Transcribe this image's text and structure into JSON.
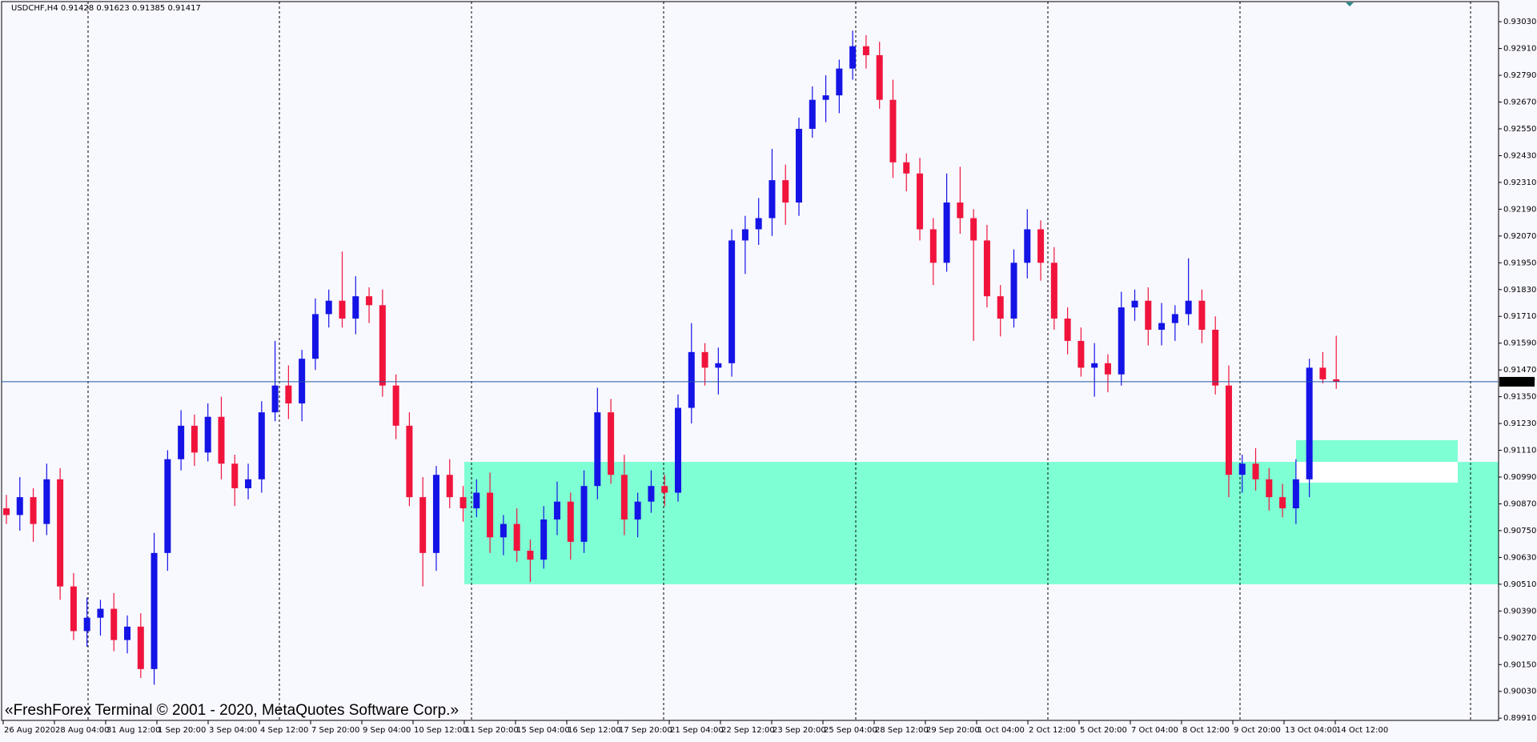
{
  "chart_data": {
    "type": "candlestick",
    "header": "USDCHF,H4  0.91428 0.91623 0.91385 0.91417",
    "watermark": "«FreshForex Terminal © 2001 - 2020, MetaQuotes Software Corp.»",
    "bull_color": "#1414e6",
    "bear_color": "#f0143c",
    "zone_color": "#7fffd4",
    "ylim": [
      0.899,
      0.9312
    ],
    "yticks": [
      {
        "value": 0.9303,
        "label": "0.93030"
      },
      {
        "value": 0.9291,
        "label": "0.92910"
      },
      {
        "value": 0.9279,
        "label": "0.92790"
      },
      {
        "value": 0.9267,
        "label": "0.92670"
      },
      {
        "value": 0.9255,
        "label": "0.92550"
      },
      {
        "value": 0.9243,
        "label": "0.92430"
      },
      {
        "value": 0.9231,
        "label": "0.92310"
      },
      {
        "value": 0.9219,
        "label": "0.92190"
      },
      {
        "value": 0.9207,
        "label": "0.92070"
      },
      {
        "value": 0.9195,
        "label": "0.91950"
      },
      {
        "value": 0.9183,
        "label": "0.91830"
      },
      {
        "value": 0.9171,
        "label": "0.91710"
      },
      {
        "value": 0.9159,
        "label": "0.91590"
      },
      {
        "value": 0.9147,
        "label": "0.91470"
      },
      {
        "value": 0.9135,
        "label": "0.91350"
      },
      {
        "value": 0.9123,
        "label": "0.91230"
      },
      {
        "value": 0.9111,
        "label": "0.91110"
      },
      {
        "value": 0.9099,
        "label": "0.90990"
      },
      {
        "value": 0.9087,
        "label": "0.90870"
      },
      {
        "value": 0.9075,
        "label": "0.90750"
      },
      {
        "value": 0.9063,
        "label": "0.90630"
      },
      {
        "value": 0.9051,
        "label": "0.90510"
      },
      {
        "value": 0.9039,
        "label": "0.90390"
      },
      {
        "value": 0.9027,
        "label": "0.90270"
      },
      {
        "value": 0.9015,
        "label": "0.90150"
      },
      {
        "value": 0.9003,
        "label": "0.90030"
      },
      {
        "value": 0.8991,
        "label": "0.89910"
      }
    ],
    "current_price": {
      "value": 0.91417,
      "label": "0.91417"
    },
    "time_labels": [
      "26 Aug 2020",
      "28 Aug 04:00",
      "31 Aug 12:00",
      "1 Sep 20:00",
      "3 Sep 04:00",
      "4 Sep 12:00",
      "7 Sep 20:00",
      "9 Sep 04:00",
      "10 Sep 12:00",
      "11 Sep 20:00",
      "15 Sep 04:00",
      "16 Sep 12:00",
      "17 Sep 20:00",
      "21 Sep 04:00",
      "22 Sep 12:00",
      "23 Sep 20:00",
      "25 Sep 04:00",
      "28 Sep 12:00",
      "29 Sep 20:00",
      "1 Oct 04:00",
      "2 Oct 12:00",
      "5 Oct 20:00",
      "7 Oct 04:00",
      "8 Oct 12:00",
      "9 Oct 20:00",
      "13 Oct 04:00",
      "14 Oct 12:00"
    ],
    "zones": [
      {
        "top": 0.91058,
        "bottom": 0.9051
      },
      {
        "top": 0.91155,
        "bottom": 0.91058
      }
    ],
    "open": [
      0.9085,
      0.9082,
      0.909,
      0.9078,
      0.9098,
      0.905,
      0.903,
      0.9036,
      0.904,
      0.9026,
      0.9032,
      0.9013,
      0.9065,
      0.9107,
      0.9122,
      0.911,
      0.9126,
      0.9105,
      0.9094,
      0.9098,
      0.9128,
      0.914,
      0.9132,
      0.9152,
      0.9172,
      0.9178,
      0.917,
      0.918,
      0.9176,
      0.914,
      0.9122,
      0.909,
      0.9065,
      0.91,
      0.909,
      0.9085,
      0.9092,
      0.9072,
      0.9078,
      0.9066,
      0.9062,
      0.908,
      0.9088,
      0.907,
      0.9095,
      0.9128,
      0.91,
      0.908,
      0.9088,
      0.9095,
      0.9092,
      0.913,
      0.9155,
      0.9148,
      0.915,
      0.9205,
      0.921,
      0.9215,
      0.9232,
      0.9222,
      0.9255,
      0.9268,
      0.927,
      0.9282,
      0.9292,
      0.9288,
      0.9268,
      0.924,
      0.9235,
      0.921,
      0.9195,
      0.9222,
      0.9215,
      0.9205,
      0.918,
      0.917,
      0.9195,
      0.921,
      0.9195,
      0.917,
      0.916,
      0.9148,
      0.915,
      0.9145,
      0.9175,
      0.9178,
      0.9165,
      0.9168,
      0.9172,
      0.9178,
      0.9165,
      0.914,
      0.91,
      0.9105,
      0.9098,
      0.909,
      0.9085,
      0.9098,
      0.9148,
      0.91428
    ],
    "high": [
      0.9091,
      0.9099,
      0.9094,
      0.9105,
      0.9103,
      0.9056,
      0.9045,
      0.9044,
      0.9047,
      0.9037,
      0.9038,
      0.9074,
      0.9111,
      0.9129,
      0.9127,
      0.9132,
      0.9135,
      0.9109,
      0.9105,
      0.9133,
      0.916,
      0.9149,
      0.9156,
      0.9179,
      0.9183,
      0.92,
      0.9189,
      0.9184,
      0.9183,
      0.9145,
      0.9128,
      0.9099,
      0.9104,
      0.9107,
      0.9095,
      0.9098,
      0.9101,
      0.9082,
      0.9085,
      0.9071,
      0.9086,
      0.9097,
      0.9092,
      0.9102,
      0.9139,
      0.9134,
      0.9109,
      0.9092,
      0.9102,
      0.91,
      0.9136,
      0.9168,
      0.9159,
      0.9157,
      0.921,
      0.9216,
      0.9224,
      0.9246,
      0.9239,
      0.926,
      0.9274,
      0.9279,
      0.9286,
      0.9299,
      0.9297,
      0.9294,
      0.9277,
      0.9244,
      0.9242,
      0.9215,
      0.9235,
      0.9238,
      0.9219,
      0.9212,
      0.9185,
      0.9201,
      0.9219,
      0.9214,
      0.9202,
      0.9175,
      0.9166,
      0.9159,
      0.9154,
      0.9182,
      0.9183,
      0.9184,
      0.9177,
      0.9176,
      0.9197,
      0.9183,
      0.9171,
      0.9149,
      0.9109,
      0.9112,
      0.9103,
      0.9096,
      0.9107,
      0.9152,
      0.9155,
      0.91623
    ],
    "low": [
      0.9078,
      0.9075,
      0.907,
      0.9073,
      0.9044,
      0.9026,
      0.9023,
      0.9028,
      0.9021,
      0.902,
      0.9009,
      0.9006,
      0.9057,
      0.9102,
      0.9104,
      0.9106,
      0.9098,
      0.9086,
      0.9089,
      0.9092,
      0.9124,
      0.9125,
      0.9124,
      0.9147,
      0.9166,
      0.9166,
      0.9163,
      0.9168,
      0.9135,
      0.9116,
      0.9086,
      0.905,
      0.9057,
      0.9085,
      0.9079,
      0.9081,
      0.9065,
      0.9064,
      0.9061,
      0.9052,
      0.9058,
      0.9073,
      0.9062,
      0.9065,
      0.9089,
      0.9096,
      0.9073,
      0.9072,
      0.9083,
      0.9086,
      0.9088,
      0.9123,
      0.914,
      0.9136,
      0.9144,
      0.919,
      0.9203,
      0.9207,
      0.9212,
      0.9216,
      0.9251,
      0.9258,
      0.9262,
      0.9277,
      0.9282,
      0.9264,
      0.9233,
      0.9227,
      0.9205,
      0.9185,
      0.9191,
      0.9208,
      0.916,
      0.9175,
      0.9162,
      0.9166,
      0.9188,
      0.9187,
      0.9165,
      0.9154,
      0.9144,
      0.9135,
      0.9137,
      0.914,
      0.9169,
      0.9158,
      0.9158,
      0.916,
      0.9167,
      0.9159,
      0.9136,
      0.909,
      0.9092,
      0.9093,
      0.9084,
      0.9081,
      0.9078,
      0.909,
      0.9141,
      0.91385
    ],
    "close": [
      0.9082,
      0.909,
      0.9078,
      0.9098,
      0.905,
      0.903,
      0.9036,
      0.904,
      0.9026,
      0.9032,
      0.9013,
      0.9065,
      0.9107,
      0.9122,
      0.911,
      0.9126,
      0.9105,
      0.9094,
      0.9098,
      0.9128,
      0.914,
      0.9132,
      0.9152,
      0.9172,
      0.9178,
      0.917,
      0.918,
      0.9176,
      0.914,
      0.9122,
      0.909,
      0.9065,
      0.91,
      0.909,
      0.9085,
      0.9092,
      0.9072,
      0.9078,
      0.9066,
      0.9062,
      0.908,
      0.9088,
      0.907,
      0.9095,
      0.9128,
      0.91,
      0.908,
      0.9088,
      0.9095,
      0.9092,
      0.913,
      0.9155,
      0.9148,
      0.915,
      0.9205,
      0.921,
      0.9215,
      0.9232,
      0.9222,
      0.9255,
      0.9268,
      0.927,
      0.9282,
      0.9292,
      0.9288,
      0.9268,
      0.924,
      0.9235,
      0.921,
      0.9195,
      0.9222,
      0.9215,
      0.9205,
      0.918,
      0.917,
      0.9195,
      0.921,
      0.9195,
      0.917,
      0.916,
      0.9148,
      0.915,
      0.9145,
      0.9175,
      0.9178,
      0.9165,
      0.9168,
      0.9172,
      0.9178,
      0.9165,
      0.914,
      0.91,
      0.9105,
      0.9098,
      0.909,
      0.9085,
      0.9098,
      0.9148,
      0.91428,
      0.91417
    ]
  }
}
